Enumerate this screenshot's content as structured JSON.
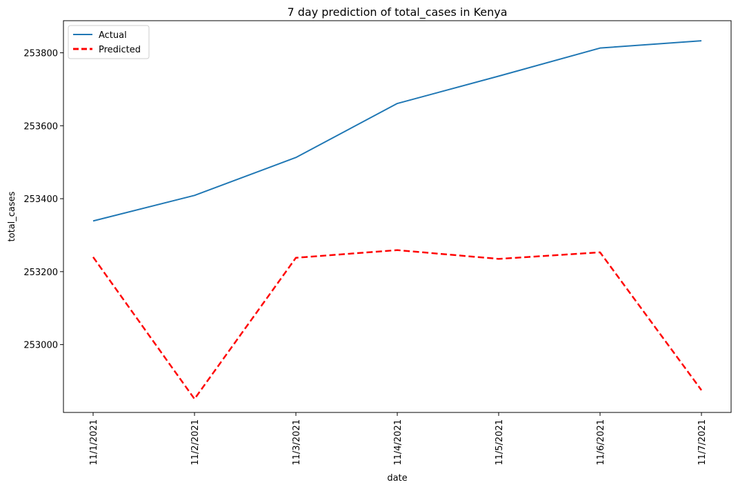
{
  "chart_data": {
    "type": "line",
    "title": "7 day prediction of total_cases in Kenya",
    "xlabel": "date",
    "ylabel": "total_cases",
    "categories": [
      "11/1/2021",
      "11/2/2021",
      "11/3/2021",
      "11/4/2021",
      "11/5/2021",
      "11/6/2021",
      "11/7/2021"
    ],
    "ylim": [
      252814,
      253888
    ],
    "yticks": [
      253000,
      253200,
      253400,
      253600,
      253800
    ],
    "grid": false,
    "legend_position": "top-left",
    "series": [
      {
        "name": "Actual",
        "color": "#1f77b4",
        "style": "solid",
        "values": [
          253339,
          253409,
          253513,
          253661,
          253736,
          253813,
          253833
        ]
      },
      {
        "name": "Predicted",
        "color": "#ff0000",
        "style": "dashed",
        "values": [
          253240,
          252851,
          253238,
          253259,
          253235,
          253253,
          252875
        ]
      }
    ]
  }
}
